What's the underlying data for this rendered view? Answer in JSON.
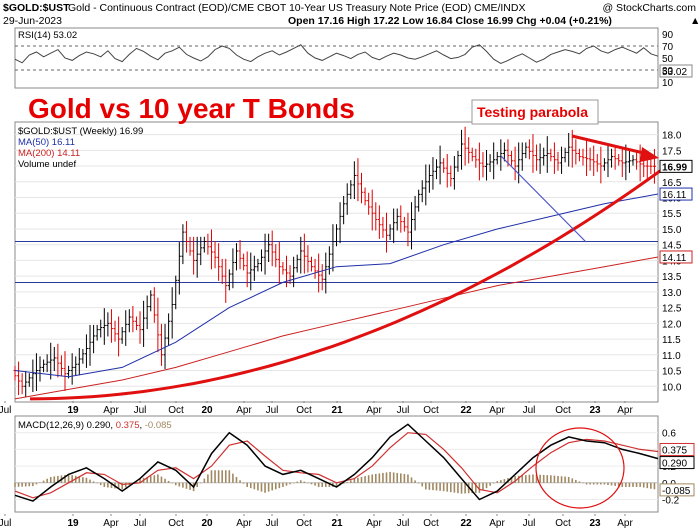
{
  "header": {
    "symbol": "$GOLD:$UST",
    "description": "Gold - Continuous Contract (EOD)/CME CBOT 10-Year US Treasury Note Price (EOD)  CME/INDX",
    "copyright": "@ StockCharts.com",
    "date": "29-Jun-2023",
    "ohlc": "Open 17.16  High 17.22  Low 16.84  Close 16.99  Chg +0.04 (+0.21%)",
    "ohlc_arrow": "▲"
  },
  "annotations": {
    "big_title": "Gold vs 10 year T Bonds",
    "testing_label": "Testing parabola"
  },
  "colors": {
    "price_bar_up": "#000000",
    "price_bar_down": "#e00000",
    "ma50": "#1f2fa8",
    "ma200": "#cc2020",
    "parabola": "#e01010",
    "trendline": "#4a55c8",
    "hline": "#2a3aa0",
    "rsi_line": "#444444",
    "macd_line": "#000000",
    "signal_line": "#d03030",
    "histogram": "#a08860",
    "circle": "#e01010"
  },
  "chart_data": [
    {
      "type": "line",
      "panel": "RSI",
      "legend": "RSI(14) 53.02",
      "last_value_label": "53.02",
      "ylim": [
        0,
        100
      ],
      "yticks": [
        10,
        30,
        50,
        70,
        90
      ],
      "reference_lines": [
        30,
        70
      ],
      "series": [
        {
          "name": "RSI(14)",
          "x": [
            0,
            4,
            8,
            12,
            16,
            20,
            24,
            28,
            32,
            36,
            40,
            44,
            48,
            52,
            56,
            60,
            64,
            68,
            72,
            76,
            80,
            84,
            88,
            92,
            96,
            100,
            104,
            108,
            112,
            116,
            120,
            124,
            128,
            132,
            136,
            140,
            144,
            148,
            152,
            156,
            160,
            164,
            168,
            172,
            176,
            180,
            184,
            188,
            192,
            196,
            200,
            204,
            208,
            212,
            216,
            220,
            224,
            228,
            232,
            236,
            240,
            244,
            248,
            252,
            256,
            260,
            264,
            268,
            272,
            276,
            280,
            284,
            288,
            292,
            296,
            300,
            304,
            308,
            312,
            316,
            320,
            324,
            328,
            332,
            336,
            340,
            344,
            348,
            352,
            356,
            360
          ],
          "values": [
            48,
            42,
            55,
            60,
            52,
            58,
            64,
            50,
            46,
            54,
            60,
            57,
            52,
            62,
            49,
            44,
            56,
            66,
            61,
            53,
            47,
            58,
            62,
            68,
            56,
            50,
            45,
            52,
            64,
            70,
            66,
            55,
            48,
            44,
            52,
            58,
            62,
            55,
            60,
            66,
            72,
            58,
            50,
            46,
            52,
            58,
            54,
            49,
            56,
            60,
            51,
            47,
            53,
            58,
            55,
            50,
            48,
            52,
            57,
            62,
            55,
            49,
            51,
            56,
            68,
            72,
            61,
            48,
            41,
            46,
            52,
            57,
            50,
            43,
            48,
            56,
            60,
            64,
            61,
            57,
            66,
            70,
            62,
            58,
            64,
            68,
            63,
            58,
            67,
            57,
            53.02
          ]
        }
      ]
    },
    {
      "type": "line",
      "panel": "Price",
      "legend": [
        "$GOLD:$UST (Weekly) 16.99",
        "MA(50) 16.11",
        "MA(200) 14.11",
        "Volume undef"
      ],
      "ylim": [
        9.5,
        18.4
      ],
      "yticks": [
        10.0,
        10.5,
        11.0,
        11.5,
        12.0,
        12.5,
        13.0,
        13.5,
        14.0,
        14.5,
        15.0,
        15.5,
        16.0,
        16.5,
        17.0,
        17.5,
        18.0
      ],
      "value_tags": [
        {
          "value": 16.99,
          "label": "16.99"
        },
        {
          "value": 16.11,
          "label": "16.11"
        },
        {
          "value": 14.11,
          "label": "14.11"
        }
      ],
      "horizontal_lines": [
        14.6,
        13.3
      ],
      "x_labels": [
        "Jul",
        "19",
        "Apr",
        "Jul",
        "Oct",
        "20",
        "Apr",
        "Jul",
        "Oct",
        "21",
        "Apr",
        "Jul",
        "Oct",
        "22",
        "Apr",
        "Jul",
        "Oct",
        "23",
        "Apr"
      ],
      "series": [
        {
          "name": "$GOLD:$UST",
          "x": [
            0,
            6,
            12,
            18,
            24,
            30,
            36,
            42,
            48,
            54,
            60,
            66,
            72,
            78,
            84,
            90,
            96,
            102,
            108,
            114,
            120,
            126,
            132,
            138,
            144,
            150,
            156,
            162,
            168,
            174,
            180,
            186,
            192,
            198,
            204,
            210,
            216,
            222,
            228,
            234,
            240,
            246,
            252,
            258,
            264,
            270,
            276,
            282,
            288,
            294,
            300,
            306,
            312,
            318,
            324,
            330,
            336,
            342,
            348,
            354,
            360
          ],
          "values": [
            10.5,
            10.0,
            10.4,
            10.7,
            10.9,
            10.4,
            10.7,
            11.2,
            11.8,
            12.0,
            11.5,
            12.2,
            11.8,
            12.9,
            11.0,
            12.6,
            14.9,
            14.0,
            14.6,
            14.1,
            13.2,
            14.3,
            13.6,
            13.9,
            14.5,
            13.8,
            13.5,
            14.3,
            13.8,
            13.4,
            14.6,
            15.8,
            16.7,
            15.9,
            15.3,
            14.8,
            15.4,
            14.9,
            16.1,
            16.7,
            17.1,
            16.6,
            17.7,
            17.3,
            16.99,
            17.2,
            17.5,
            17.0,
            17.6,
            17.2,
            17.4,
            17.1,
            17.6,
            17.3,
            17.2,
            17.0,
            17.3,
            17.1,
            17.2,
            17.0,
            16.99
          ]
        },
        {
          "name": "MA(50)",
          "x": [
            0,
            30,
            60,
            90,
            120,
            150,
            180,
            210,
            240,
            270,
            300,
            330,
            360
          ],
          "values": [
            10.5,
            10.3,
            10.6,
            11.4,
            12.5,
            13.3,
            13.8,
            13.9,
            14.5,
            15.0,
            15.4,
            15.8,
            16.11
          ]
        },
        {
          "name": "MA(200)",
          "x": [
            0,
            30,
            60,
            90,
            120,
            150,
            180,
            210,
            240,
            270,
            300,
            330,
            360
          ],
          "values": [
            9.6,
            9.9,
            10.2,
            10.6,
            11.1,
            11.6,
            12.0,
            12.4,
            12.8,
            13.2,
            13.5,
            13.8,
            14.11
          ]
        }
      ]
    },
    {
      "type": "line",
      "panel": "MACD",
      "legend": {
        "text": "MACD(12,26,9)",
        "macd": "0.290",
        "signal": "0.375",
        "hist": "-0.085"
      },
      "value_tags": [
        {
          "value": 0.375,
          "label": "0.375"
        },
        {
          "value": 0.29,
          "label": "0.290"
        },
        {
          "value": -0.085,
          "label": "-0.085"
        }
      ],
      "ylim": [
        -0.35,
        0.8
      ],
      "yticks": [
        -0.2,
        0.0,
        0.2,
        0.4,
        0.6
      ],
      "x_labels": [
        "Jul",
        "19",
        "Apr",
        "Jul",
        "Oct",
        "20",
        "Apr",
        "Jul",
        "Oct",
        "21",
        "Apr",
        "Jul",
        "Oct",
        "22",
        "Apr",
        "Jul",
        "Oct",
        "23",
        "Apr"
      ],
      "series": [
        {
          "name": "MACD",
          "x": [
            0,
            10,
            20,
            30,
            40,
            50,
            60,
            70,
            80,
            90,
            100,
            110,
            120,
            130,
            140,
            150,
            160,
            170,
            180,
            190,
            200,
            210,
            220,
            230,
            240,
            250,
            260,
            270,
            280,
            290,
            300,
            310,
            320,
            330,
            340,
            350,
            360
          ],
          "values": [
            -0.15,
            -0.22,
            -0.05,
            0.1,
            0.18,
            0.05,
            -0.1,
            0.05,
            0.25,
            0.15,
            -0.05,
            0.35,
            0.6,
            0.45,
            0.2,
            0.1,
            0.15,
            0.05,
            -0.05,
            0.1,
            0.3,
            0.55,
            0.7,
            0.5,
            0.3,
            0.05,
            -0.2,
            -0.1,
            0.1,
            0.3,
            0.45,
            0.55,
            0.5,
            0.48,
            0.4,
            0.35,
            0.29
          ]
        },
        {
          "name": "Signal",
          "x": [
            0,
            10,
            20,
            30,
            40,
            50,
            60,
            70,
            80,
            90,
            100,
            110,
            120,
            130,
            140,
            150,
            160,
            170,
            180,
            190,
            200,
            210,
            220,
            230,
            240,
            250,
            260,
            270,
            280,
            290,
            300,
            310,
            320,
            330,
            340,
            350,
            360
          ],
          "values": [
            -0.1,
            -0.18,
            -0.12,
            0.0,
            0.12,
            0.1,
            -0.02,
            0.0,
            0.15,
            0.18,
            0.05,
            0.2,
            0.45,
            0.5,
            0.32,
            0.15,
            0.12,
            0.1,
            0.0,
            0.05,
            0.2,
            0.42,
            0.6,
            0.58,
            0.4,
            0.18,
            -0.08,
            -0.12,
            0.02,
            0.2,
            0.36,
            0.48,
            0.52,
            0.5,
            0.45,
            0.4,
            0.375
          ]
        }
      ]
    }
  ]
}
